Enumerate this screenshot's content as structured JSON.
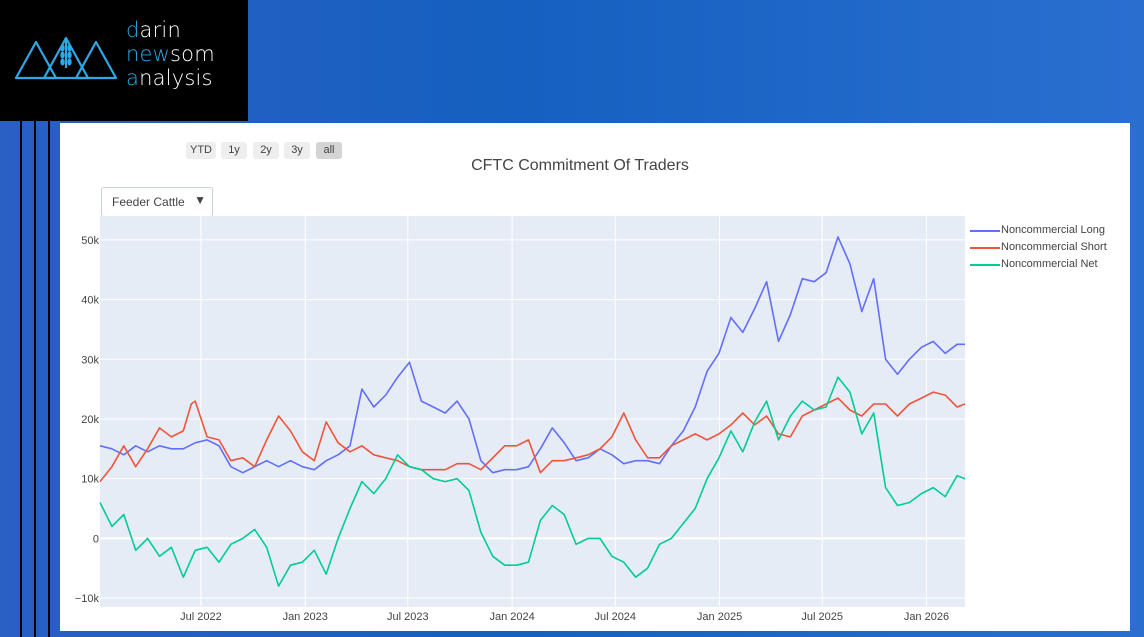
{
  "logo": {
    "line1_first": "d",
    "line1_rest": "arin",
    "line2_first": "ne",
    "line2_hl": "w",
    "line2_rest": "som",
    "line3_first": "a",
    "line3_rest": "nalysis"
  },
  "range_selector": {
    "buttons": [
      "YTD",
      "1y",
      "2y",
      "3y",
      "all"
    ],
    "active": "all"
  },
  "dropdown": {
    "selected": "Feeder Cattle"
  },
  "colors": {
    "long": "#636efa",
    "short": "#ef553b",
    "net": "#00cc96",
    "plot_bg": "#e5ecf6",
    "grid": "#ffffff",
    "brand_accent": "#2fa8e6"
  },
  "chart_data": {
    "type": "line",
    "title": "CFTC Commitment Of Traders",
    "xlabel": "",
    "ylabel": "",
    "xlim": [
      "2022-01-04",
      "2026-03-10"
    ],
    "ylim": [
      -11500,
      54000
    ],
    "grid": true,
    "legend_position": "right",
    "x_ticks": [
      {
        "date": "2022-07-01",
        "label": "Jul 2022"
      },
      {
        "date": "2023-01-01",
        "label": "Jan 2023"
      },
      {
        "date": "2023-07-01",
        "label": "Jul 2023"
      },
      {
        "date": "2024-01-01",
        "label": "Jan 2024"
      },
      {
        "date": "2024-07-01",
        "label": "Jul 2024"
      },
      {
        "date": "2025-01-01",
        "label": "Jan 2025"
      },
      {
        "date": "2025-07-01",
        "label": "Jul 2025"
      },
      {
        "date": "2026-01-01",
        "label": "Jan 2026"
      }
    ],
    "y_ticks": [
      {
        "value": -10000,
        "label": "−10k"
      },
      {
        "value": 0,
        "label": "0"
      },
      {
        "value": 10000,
        "label": "10k"
      },
      {
        "value": 20000,
        "label": "20k"
      },
      {
        "value": 30000,
        "label": "30k"
      },
      {
        "value": 40000,
        "label": "40k"
      },
      {
        "value": 50000,
        "label": "50k"
      }
    ],
    "series": [
      {
        "name": "Noncommercial Long",
        "color": "#636efa",
        "points": [
          [
            "2022-01-04",
            15500
          ],
          [
            "2022-01-25",
            15000
          ],
          [
            "2022-02-15",
            14000
          ],
          [
            "2022-03-08",
            15500
          ],
          [
            "2022-03-29",
            14500
          ],
          [
            "2022-04-19",
            15500
          ],
          [
            "2022-05-10",
            15000
          ],
          [
            "2022-05-31",
            15000
          ],
          [
            "2022-06-21",
            16000
          ],
          [
            "2022-07-12",
            16500
          ],
          [
            "2022-08-02",
            15500
          ],
          [
            "2022-08-23",
            12000
          ],
          [
            "2022-09-13",
            11000
          ],
          [
            "2022-10-04",
            12000
          ],
          [
            "2022-10-25",
            13000
          ],
          [
            "2022-11-15",
            12000
          ],
          [
            "2022-12-06",
            13000
          ],
          [
            "2022-12-27",
            12000
          ],
          [
            "2023-01-17",
            11500
          ],
          [
            "2023-02-07",
            13000
          ],
          [
            "2023-02-28",
            14000
          ],
          [
            "2023-03-21",
            15500
          ],
          [
            "2023-04-11",
            25000
          ],
          [
            "2023-05-02",
            22000
          ],
          [
            "2023-05-23",
            24000
          ],
          [
            "2023-06-13",
            27000
          ],
          [
            "2023-07-04",
            29500
          ],
          [
            "2023-07-25",
            23000
          ],
          [
            "2023-08-15",
            22000
          ],
          [
            "2023-09-05",
            21000
          ],
          [
            "2023-09-26",
            23000
          ],
          [
            "2023-10-17",
            20000
          ],
          [
            "2023-11-07",
            13000
          ],
          [
            "2023-11-28",
            11000
          ],
          [
            "2023-12-19",
            11500
          ],
          [
            "2024-01-09",
            11500
          ],
          [
            "2024-01-30",
            12000
          ],
          [
            "2024-02-20",
            15000
          ],
          [
            "2024-03-12",
            18500
          ],
          [
            "2024-04-02",
            16000
          ],
          [
            "2024-04-23",
            13000
          ],
          [
            "2024-05-14",
            13500
          ],
          [
            "2024-06-04",
            15000
          ],
          [
            "2024-06-25",
            14000
          ],
          [
            "2024-07-16",
            12500
          ],
          [
            "2024-08-06",
            13000
          ],
          [
            "2024-08-27",
            13000
          ],
          [
            "2024-09-17",
            12500
          ],
          [
            "2024-10-08",
            15500
          ],
          [
            "2024-10-29",
            18000
          ],
          [
            "2024-11-19",
            22000
          ],
          [
            "2024-12-10",
            28000
          ],
          [
            "2024-12-31",
            31000
          ],
          [
            "2025-01-21",
            37000
          ],
          [
            "2025-02-11",
            34500
          ],
          [
            "2025-03-04",
            38500
          ],
          [
            "2025-03-25",
            43000
          ],
          [
            "2025-04-15",
            33000
          ],
          [
            "2025-05-06",
            37500
          ],
          [
            "2025-05-27",
            43500
          ],
          [
            "2025-06-17",
            43000
          ],
          [
            "2025-07-08",
            44500
          ],
          [
            "2025-07-29",
            50500
          ],
          [
            "2025-08-19",
            46000
          ],
          [
            "2025-09-09",
            38000
          ],
          [
            "2025-09-30",
            43500
          ],
          [
            "2025-10-21",
            30000
          ],
          [
            "2025-11-11",
            27500
          ],
          [
            "2025-12-02",
            30000
          ],
          [
            "2025-12-23",
            32000
          ],
          [
            "2026-01-13",
            33000
          ],
          [
            "2026-02-03",
            31000
          ],
          [
            "2026-02-24",
            32500
          ],
          [
            "2026-03-10",
            32500
          ]
        ]
      },
      {
        "name": "Noncommercial Short",
        "color": "#ef553b",
        "points": [
          [
            "2022-01-04",
            9500
          ],
          [
            "2022-01-25",
            12000
          ],
          [
            "2022-02-15",
            15500
          ],
          [
            "2022-03-08",
            12000
          ],
          [
            "2022-03-29",
            15000
          ],
          [
            "2022-04-19",
            18500
          ],
          [
            "2022-05-10",
            17000
          ],
          [
            "2022-05-31",
            18000
          ],
          [
            "2022-06-14",
            22500
          ],
          [
            "2022-06-21",
            23000
          ],
          [
            "2022-07-12",
            17000
          ],
          [
            "2022-08-02",
            16500
          ],
          [
            "2022-08-23",
            13000
          ],
          [
            "2022-09-13",
            13500
          ],
          [
            "2022-10-04",
            12000
          ],
          [
            "2022-10-25",
            16500
          ],
          [
            "2022-11-15",
            20500
          ],
          [
            "2022-12-06",
            18000
          ],
          [
            "2022-12-27",
            14500
          ],
          [
            "2023-01-17",
            13000
          ],
          [
            "2023-02-07",
            19500
          ],
          [
            "2023-02-28",
            16000
          ],
          [
            "2023-03-21",
            14500
          ],
          [
            "2023-04-11",
            15500
          ],
          [
            "2023-05-02",
            14000
          ],
          [
            "2023-05-23",
            13500
          ],
          [
            "2023-06-13",
            13000
          ],
          [
            "2023-07-04",
            12000
          ],
          [
            "2023-07-25",
            11500
          ],
          [
            "2023-08-15",
            11500
          ],
          [
            "2023-09-05",
            11500
          ],
          [
            "2023-09-26",
            12500
          ],
          [
            "2023-10-17",
            12500
          ],
          [
            "2023-11-07",
            11500
          ],
          [
            "2023-11-28",
            13500
          ],
          [
            "2023-12-19",
            15500
          ],
          [
            "2024-01-09",
            15500
          ],
          [
            "2024-01-30",
            16500
          ],
          [
            "2024-02-20",
            11000
          ],
          [
            "2024-03-12",
            13000
          ],
          [
            "2024-04-02",
            13000
          ],
          [
            "2024-04-23",
            13500
          ],
          [
            "2024-05-14",
            14000
          ],
          [
            "2024-06-04",
            15000
          ],
          [
            "2024-06-25",
            17000
          ],
          [
            "2024-07-16",
            21000
          ],
          [
            "2024-08-06",
            16500
          ],
          [
            "2024-08-27",
            13500
          ],
          [
            "2024-09-17",
            13500
          ],
          [
            "2024-10-08",
            15500
          ],
          [
            "2024-10-29",
            16500
          ],
          [
            "2024-11-19",
            17500
          ],
          [
            "2024-12-10",
            16500
          ],
          [
            "2024-12-31",
            17500
          ],
          [
            "2025-01-21",
            19000
          ],
          [
            "2025-02-11",
            21000
          ],
          [
            "2025-03-04",
            19000
          ],
          [
            "2025-03-25",
            20500
          ],
          [
            "2025-04-15",
            17500
          ],
          [
            "2025-05-06",
            17000
          ],
          [
            "2025-05-27",
            20500
          ],
          [
            "2025-06-17",
            21500
          ],
          [
            "2025-07-08",
            22500
          ],
          [
            "2025-07-29",
            23500
          ],
          [
            "2025-08-19",
            21500
          ],
          [
            "2025-09-09",
            20500
          ],
          [
            "2025-09-30",
            22500
          ],
          [
            "2025-10-21",
            22500
          ],
          [
            "2025-11-11",
            20500
          ],
          [
            "2025-12-02",
            22500
          ],
          [
            "2025-12-23",
            23500
          ],
          [
            "2026-01-13",
            24500
          ],
          [
            "2026-02-03",
            24000
          ],
          [
            "2026-02-24",
            22000
          ],
          [
            "2026-03-10",
            22500
          ]
        ]
      },
      {
        "name": "Noncommercial Net",
        "color": "#00cc96",
        "points": [
          [
            "2022-01-04",
            6000
          ],
          [
            "2022-01-25",
            2000
          ],
          [
            "2022-02-15",
            4000
          ],
          [
            "2022-03-08",
            -2000
          ],
          [
            "2022-03-29",
            0
          ],
          [
            "2022-04-19",
            -3000
          ],
          [
            "2022-05-10",
            -1500
          ],
          [
            "2022-05-31",
            -6500
          ],
          [
            "2022-06-21",
            -2000
          ],
          [
            "2022-07-12",
            -1500
          ],
          [
            "2022-08-02",
            -4000
          ],
          [
            "2022-08-23",
            -1000
          ],
          [
            "2022-09-13",
            0
          ],
          [
            "2022-10-04",
            1500
          ],
          [
            "2022-10-25",
            -1500
          ],
          [
            "2022-11-15",
            -8000
          ],
          [
            "2022-12-06",
            -4500
          ],
          [
            "2022-12-27",
            -4000
          ],
          [
            "2023-01-17",
            -2000
          ],
          [
            "2023-02-07",
            -6000
          ],
          [
            "2023-02-28",
            0
          ],
          [
            "2023-03-21",
            5000
          ],
          [
            "2023-04-11",
            9500
          ],
          [
            "2023-05-02",
            7500
          ],
          [
            "2023-05-23",
            10000
          ],
          [
            "2023-06-13",
            14000
          ],
          [
            "2023-07-04",
            12000
          ],
          [
            "2023-07-25",
            11500
          ],
          [
            "2023-08-15",
            10000
          ],
          [
            "2023-09-05",
            9500
          ],
          [
            "2023-09-26",
            10000
          ],
          [
            "2023-10-17",
            8000
          ],
          [
            "2023-11-07",
            1000
          ],
          [
            "2023-11-28",
            -3000
          ],
          [
            "2023-12-19",
            -4500
          ],
          [
            "2024-01-09",
            -4500
          ],
          [
            "2024-01-30",
            -4000
          ],
          [
            "2024-02-20",
            3000
          ],
          [
            "2024-03-12",
            5500
          ],
          [
            "2024-04-02",
            4000
          ],
          [
            "2024-04-23",
            -1000
          ],
          [
            "2024-05-14",
            0
          ],
          [
            "2024-06-04",
            0
          ],
          [
            "2024-06-25",
            -3000
          ],
          [
            "2024-07-16",
            -4000
          ],
          [
            "2024-08-06",
            -6500
          ],
          [
            "2024-08-27",
            -5000
          ],
          [
            "2024-09-17",
            -1000
          ],
          [
            "2024-10-08",
            0
          ],
          [
            "2024-10-29",
            2500
          ],
          [
            "2024-11-19",
            5000
          ],
          [
            "2024-12-10",
            10000
          ],
          [
            "2024-12-31",
            13500
          ],
          [
            "2025-01-21",
            18000
          ],
          [
            "2025-02-11",
            14500
          ],
          [
            "2025-03-04",
            19500
          ],
          [
            "2025-03-25",
            23000
          ],
          [
            "2025-04-15",
            16500
          ],
          [
            "2025-05-06",
            20500
          ],
          [
            "2025-05-27",
            23000
          ],
          [
            "2025-06-17",
            21500
          ],
          [
            "2025-07-08",
            22000
          ],
          [
            "2025-07-29",
            27000
          ],
          [
            "2025-08-19",
            24500
          ],
          [
            "2025-09-09",
            17500
          ],
          [
            "2025-09-30",
            21000
          ],
          [
            "2025-10-21",
            8500
          ],
          [
            "2025-11-11",
            5500
          ],
          [
            "2025-12-02",
            6000
          ],
          [
            "2025-12-23",
            7500
          ],
          [
            "2026-01-13",
            8500
          ],
          [
            "2026-02-03",
            7000
          ],
          [
            "2026-02-24",
            10500
          ],
          [
            "2026-03-10",
            10000
          ]
        ]
      }
    ]
  }
}
